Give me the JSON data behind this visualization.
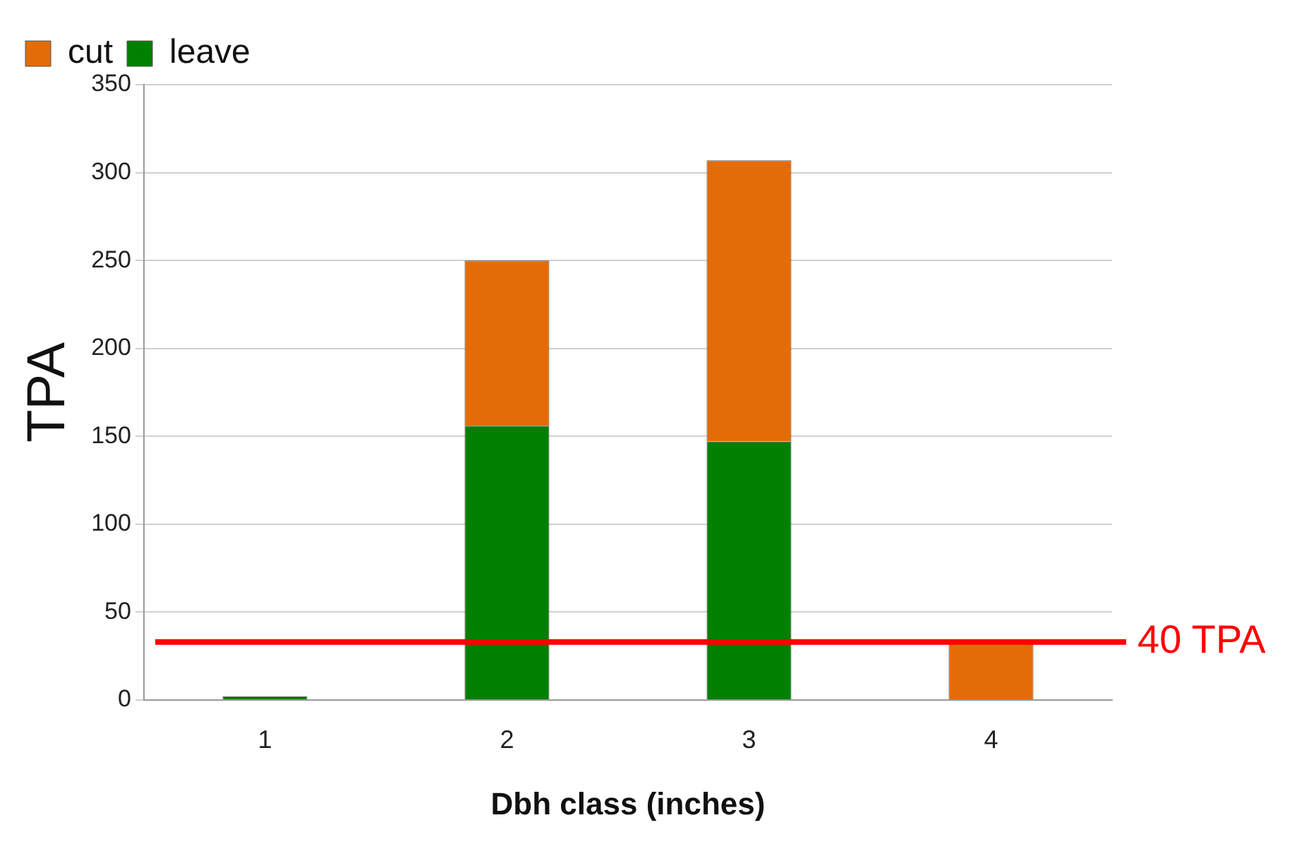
{
  "chart_data": {
    "type": "bar",
    "xlabel": "Dbh class (inches)",
    "ylabel": "TPA",
    "categories": [
      "1",
      "2",
      "3",
      "4"
    ],
    "stacked": true,
    "series": [
      {
        "name": "leave",
        "color": "#008000",
        "values": [
          2,
          156,
          147,
          0
        ]
      },
      {
        "name": "cut",
        "color": "#e36c09",
        "values": [
          0,
          94,
          160,
          32
        ]
      }
    ],
    "ylim": [
      0,
      350
    ],
    "yticks": [
      0,
      50,
      100,
      150,
      200,
      250,
      300,
      350
    ],
    "grid": "y",
    "legend": "top left",
    "ref_lines": [
      {
        "axis": "y",
        "value": 33,
        "label": "40 TPA",
        "color": "#ff0000"
      }
    ]
  }
}
